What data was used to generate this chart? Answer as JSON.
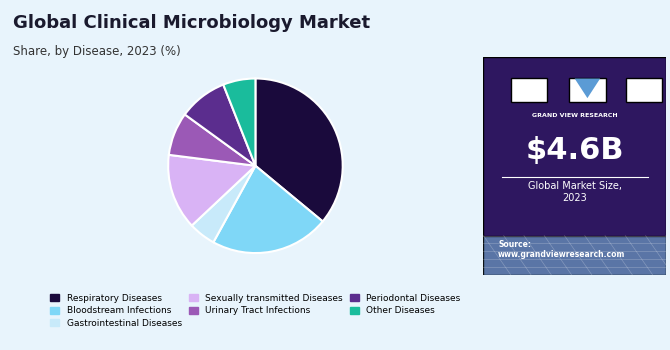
{
  "title": "Global Clinical Microbiology Market",
  "subtitle": "Share, by Disease, 2023 (%)",
  "slices": [
    {
      "label": "Respiratory Diseases",
      "value": 36,
      "color": "#1a0a3c"
    },
    {
      "label": "Bloodstream Infections",
      "value": 22,
      "color": "#7fd7f7"
    },
    {
      "label": "Gastrointestinal Diseases",
      "value": 5,
      "color": "#c8eafa"
    },
    {
      "label": "Sexually transmitted Diseases",
      "value": 14,
      "color": "#d9b3f5"
    },
    {
      "label": "Urinary Tract Infections",
      "value": 8,
      "color": "#9b59b6"
    },
    {
      "label": "Periodontal Diseases",
      "value": 9,
      "color": "#5b2d8e"
    },
    {
      "label": "Other Diseases",
      "value": 6,
      "color": "#1abc9c"
    }
  ],
  "legend_ncol": 3,
  "sidebar_bg": "#2e1760",
  "sidebar_bottom_bg": "#7b9fc7",
  "main_bg": "#e8f4fc",
  "market_size": "$4.6B",
  "market_label": "Global Market Size,\n2023",
  "source_text": "Source:\nwww.grandviewresearch.com"
}
